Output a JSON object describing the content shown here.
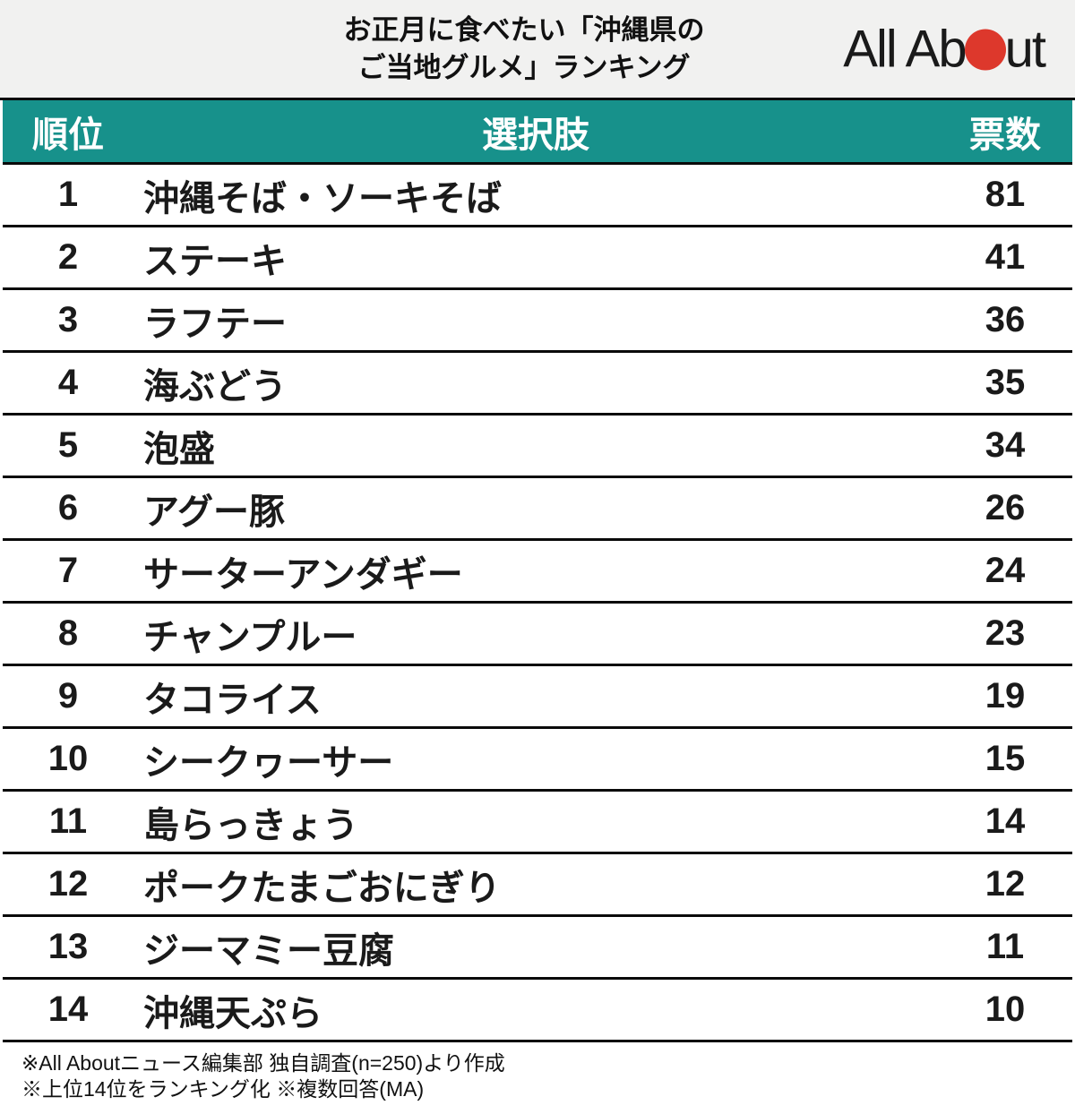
{
  "header": {
    "title_line1": "お正月に食べたい「沖縄県の",
    "title_line2": "ご当地グルメ」ランキング",
    "logo": {
      "name": "All About",
      "text_before": "All Ab",
      "text_after": "ut",
      "dot_color": "#dd382c"
    }
  },
  "table": {
    "columns": {
      "rank": "順位",
      "choice": "選択肢",
      "votes": "票数"
    },
    "rows": [
      {
        "rank": "1",
        "choice": "沖縄そば・ソーキそば",
        "votes": "81"
      },
      {
        "rank": "2",
        "choice": "ステーキ",
        "votes": "41"
      },
      {
        "rank": "3",
        "choice": "ラフテー",
        "votes": "36"
      },
      {
        "rank": "4",
        "choice": "海ぶどう",
        "votes": "35"
      },
      {
        "rank": "5",
        "choice": "泡盛",
        "votes": "34"
      },
      {
        "rank": "6",
        "choice": "アグー豚",
        "votes": "26"
      },
      {
        "rank": "7",
        "choice": "サーターアンダギー",
        "votes": "24"
      },
      {
        "rank": "8",
        "choice": "チャンプルー",
        "votes": "23"
      },
      {
        "rank": "9",
        "choice": "タコライス",
        "votes": "19"
      },
      {
        "rank": "10",
        "choice": "シークヮーサー",
        "votes": "15"
      },
      {
        "rank": "11",
        "choice": "島らっきょう",
        "votes": "14"
      },
      {
        "rank": "12",
        "choice": "ポークたまごおにぎり",
        "votes": "12"
      },
      {
        "rank": "13",
        "choice": "ジーマミー豆腐",
        "votes": "11"
      },
      {
        "rank": "14",
        "choice": "沖縄天ぷら",
        "votes": "10"
      }
    ]
  },
  "footer": {
    "note1": "※All Aboutニュース編集部 独自調査(n=250)より作成",
    "note2": "※上位14位をランキング化 ※複数回答(MA)"
  },
  "colors": {
    "header_band_bg": "#f1f1f0",
    "table_header_bg": "#17918b",
    "separator": "#0a0a0a",
    "logo_dot_red": "#dd382c",
    "text": "#1a1a1a"
  },
  "chart_data": {
    "type": "table",
    "title": "お正月に食べたい「沖縄県のご当地グルメ」ランキング",
    "columns": [
      "順位",
      "選択肢",
      "票数"
    ],
    "categories": [
      "沖縄そば・ソーキそば",
      "ステーキ",
      "ラフテー",
      "海ぶどう",
      "泡盛",
      "アグー豚",
      "サーターアンダギー",
      "チャンプルー",
      "タコライス",
      "シークヮーサー",
      "島らっきょう",
      "ポークたまごおにぎり",
      "ジーマミー豆腐",
      "沖縄天ぷら"
    ],
    "values": [
      81,
      41,
      36,
      35,
      34,
      26,
      24,
      23,
      19,
      15,
      14,
      12,
      11,
      10
    ],
    "notes": [
      "※All Aboutニュース編集部 独自調査(n=250)より作成",
      "※上位14位をランキング化 ※複数回答(MA)"
    ]
  }
}
